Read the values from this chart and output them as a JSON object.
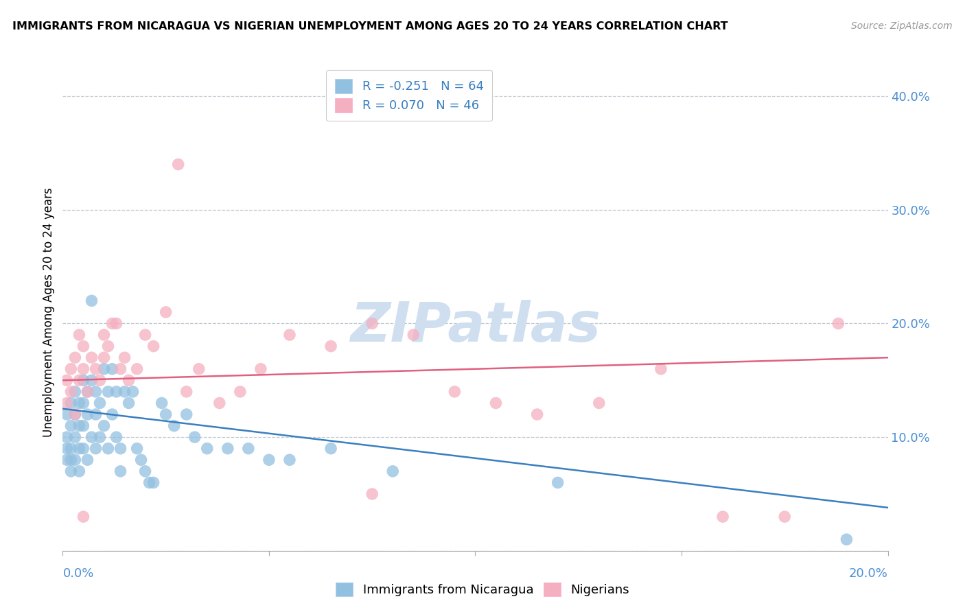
{
  "title": "IMMIGRANTS FROM NICARAGUA VS NIGERIAN UNEMPLOYMENT AMONG AGES 20 TO 24 YEARS CORRELATION CHART",
  "source": "Source: ZipAtlas.com",
  "ylabel": "Unemployment Among Ages 20 to 24 years",
  "xlim": [
    0,
    0.2
  ],
  "ylim": [
    0,
    0.42
  ],
  "ytick_values": [
    0.0,
    0.1,
    0.2,
    0.3,
    0.4
  ],
  "ytick_labels": [
    "",
    "10.0%",
    "20.0%",
    "30.0%",
    "40.0%"
  ],
  "xtick_left_label": "0.0%",
  "xtick_right_label": "20.0%",
  "legend_blue_text": "R = -0.251   N = 64",
  "legend_pink_text": "R = 0.070   N = 46",
  "legend1_label": "Immigrants from Nicaragua",
  "legend2_label": "Nigerians",
  "blue_scatter_color": "#92c0e0",
  "pink_scatter_color": "#f4afc0",
  "blue_line_color": "#3a7fbf",
  "pink_line_color": "#e06080",
  "watermark": "ZIPatlas",
  "watermark_color": "#d0dff0",
  "blue_trend_y0": 0.125,
  "blue_trend_y1": 0.038,
  "pink_trend_y0": 0.15,
  "pink_trend_y1": 0.17,
  "blue_scatter_x": [
    0.001,
    0.001,
    0.001,
    0.001,
    0.002,
    0.002,
    0.002,
    0.002,
    0.002,
    0.003,
    0.003,
    0.003,
    0.003,
    0.004,
    0.004,
    0.004,
    0.004,
    0.005,
    0.005,
    0.005,
    0.005,
    0.006,
    0.006,
    0.006,
    0.007,
    0.007,
    0.007,
    0.008,
    0.008,
    0.008,
    0.009,
    0.009,
    0.01,
    0.01,
    0.011,
    0.011,
    0.012,
    0.012,
    0.013,
    0.013,
    0.014,
    0.014,
    0.015,
    0.016,
    0.017,
    0.018,
    0.019,
    0.02,
    0.021,
    0.022,
    0.024,
    0.025,
    0.027,
    0.03,
    0.032,
    0.035,
    0.04,
    0.045,
    0.05,
    0.055,
    0.065,
    0.08,
    0.12,
    0.19
  ],
  "blue_scatter_y": [
    0.1,
    0.12,
    0.08,
    0.09,
    0.13,
    0.11,
    0.09,
    0.08,
    0.07,
    0.14,
    0.12,
    0.1,
    0.08,
    0.13,
    0.11,
    0.09,
    0.07,
    0.15,
    0.13,
    0.11,
    0.09,
    0.14,
    0.12,
    0.08,
    0.22,
    0.15,
    0.1,
    0.14,
    0.12,
    0.09,
    0.13,
    0.1,
    0.16,
    0.11,
    0.14,
    0.09,
    0.16,
    0.12,
    0.14,
    0.1,
    0.09,
    0.07,
    0.14,
    0.13,
    0.14,
    0.09,
    0.08,
    0.07,
    0.06,
    0.06,
    0.13,
    0.12,
    0.11,
    0.12,
    0.1,
    0.09,
    0.09,
    0.09,
    0.08,
    0.08,
    0.09,
    0.07,
    0.06,
    0.01
  ],
  "pink_scatter_x": [
    0.001,
    0.001,
    0.002,
    0.002,
    0.003,
    0.003,
    0.004,
    0.004,
    0.005,
    0.005,
    0.006,
    0.007,
    0.008,
    0.009,
    0.01,
    0.01,
    0.011,
    0.012,
    0.013,
    0.014,
    0.015,
    0.016,
    0.018,
    0.02,
    0.022,
    0.025,
    0.028,
    0.03,
    0.033,
    0.038,
    0.043,
    0.048,
    0.055,
    0.065,
    0.075,
    0.085,
    0.095,
    0.105,
    0.115,
    0.13,
    0.145,
    0.16,
    0.175,
    0.188,
    0.005,
    0.075
  ],
  "pink_scatter_y": [
    0.15,
    0.13,
    0.16,
    0.14,
    0.12,
    0.17,
    0.19,
    0.15,
    0.16,
    0.18,
    0.14,
    0.17,
    0.16,
    0.15,
    0.17,
    0.19,
    0.18,
    0.2,
    0.2,
    0.16,
    0.17,
    0.15,
    0.16,
    0.19,
    0.18,
    0.21,
    0.34,
    0.14,
    0.16,
    0.13,
    0.14,
    0.16,
    0.19,
    0.18,
    0.2,
    0.19,
    0.14,
    0.13,
    0.12,
    0.13,
    0.16,
    0.03,
    0.03,
    0.2,
    0.03,
    0.05
  ]
}
